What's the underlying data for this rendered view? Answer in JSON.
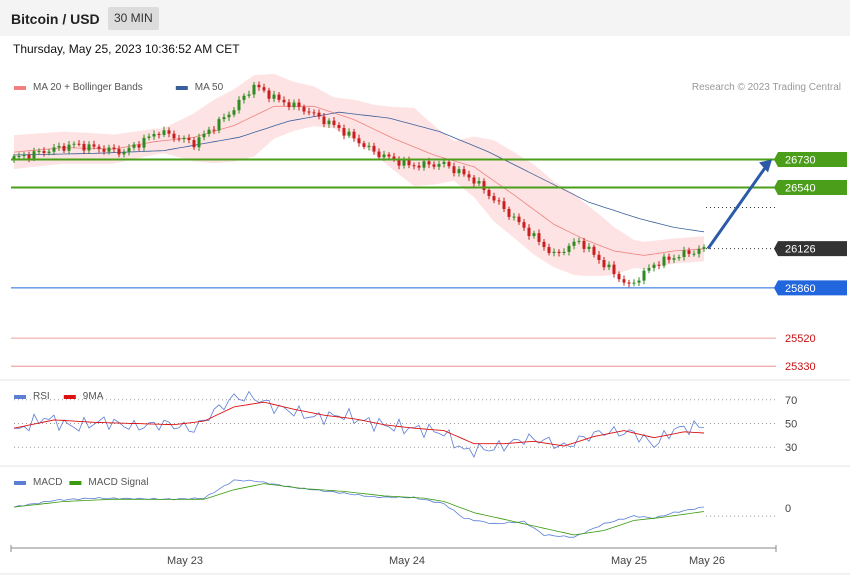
{
  "header": {
    "title": "Bitcoin / USD",
    "timeframe": "30 MIN",
    "datetime": "Thursday, May 25, 2023 10:36:52 AM CET"
  },
  "colors": {
    "bollinger": "#f08080",
    "bollinger_fill": "#fde3e3",
    "ma50": "#3a5f9b",
    "bull": "#2e8b20",
    "bear": "#c81e1e",
    "resistance": "#4a9e1a",
    "support": "#2266dd",
    "secondary_support": "#e84a4a",
    "current": "#333333",
    "rsi": "#5b7fd6",
    "rsi_ma": "#dd1111",
    "macd": "#5b7fd6",
    "macd_signal": "#3a9a10"
  },
  "chart_data": [
    {
      "type": "candlestick",
      "panel": "price",
      "legend": [
        {
          "name": "MA 20 + Bollinger Bands",
          "color": "#f08080"
        },
        {
          "name": "MA 50",
          "color": "#3a5f9b"
        }
      ],
      "copyright": "Research © 2023 Trading Central",
      "ylim": [
        25250,
        27390
      ],
      "x_ticks": [
        "May 23",
        "May 24",
        "May 25",
        "May 26"
      ],
      "levels": [
        {
          "value": 26730,
          "label": "26730",
          "kind": "resistance"
        },
        {
          "value": 26540,
          "label": "26540",
          "kind": "resistance"
        },
        {
          "value": 26126,
          "label": "26126",
          "kind": "current"
        },
        {
          "value": 25860,
          "label": "25860",
          "kind": "support"
        },
        {
          "value": 25520,
          "label": "25520",
          "kind": "secondary_support"
        },
        {
          "value": 25330,
          "label": "25330",
          "kind": "secondary_support"
        }
      ],
      "forecast": {
        "from": 26126,
        "to": 26730
      },
      "path": [
        [
          0,
          26740
        ],
        [
          12,
          26830
        ],
        [
          22,
          26780
        ],
        [
          29,
          26920
        ],
        [
          36,
          26840
        ],
        [
          43,
          27040
        ],
        [
          48,
          27230
        ],
        [
          53,
          27130
        ],
        [
          58,
          27070
        ],
        [
          65,
          26940
        ],
        [
          72,
          26780
        ],
        [
          79,
          26690
        ],
        [
          86,
          26700
        ],
        [
          92,
          26590
        ],
        [
          100,
          26330
        ],
        [
          108,
          26080
        ],
        [
          113,
          26180
        ],
        [
          118,
          26020
        ],
        [
          123,
          25870
        ],
        [
          128,
          26020
        ],
        [
          133,
          26080
        ],
        [
          138,
          26125
        ]
      ],
      "ma20": [
        [
          0,
          26780
        ],
        [
          10,
          26810
        ],
        [
          20,
          26800
        ],
        [
          28,
          26850
        ],
        [
          36,
          26880
        ],
        [
          44,
          26960
        ],
        [
          52,
          27090
        ],
        [
          60,
          27090
        ],
        [
          68,
          27000
        ],
        [
          76,
          26870
        ],
        [
          84,
          26760
        ],
        [
          92,
          26680
        ],
        [
          100,
          26490
        ],
        [
          108,
          26290
        ],
        [
          114,
          26190
        ],
        [
          120,
          26110
        ],
        [
          126,
          26080
        ],
        [
          132,
          26110
        ],
        [
          138,
          26125
        ]
      ],
      "bb_half_width": [
        [
          0,
          70
        ],
        [
          15,
          60
        ],
        [
          30,
          40
        ],
        [
          40,
          170
        ],
        [
          48,
          230
        ],
        [
          56,
          120
        ],
        [
          64,
          60
        ],
        [
          72,
          120
        ],
        [
          80,
          220
        ],
        [
          88,
          90
        ],
        [
          96,
          230
        ],
        [
          104,
          260
        ],
        [
          112,
          230
        ],
        [
          118,
          150
        ],
        [
          124,
          50
        ],
        [
          132,
          40
        ],
        [
          138,
          40
        ]
      ],
      "ma50": [
        [
          0,
          26760
        ],
        [
          15,
          26770
        ],
        [
          30,
          26790
        ],
        [
          45,
          26880
        ],
        [
          55,
          26990
        ],
        [
          65,
          27050
        ],
        [
          75,
          27010
        ],
        [
          85,
          26920
        ],
        [
          95,
          26780
        ],
        [
          105,
          26610
        ],
        [
          115,
          26440
        ],
        [
          125,
          26330
        ],
        [
          132,
          26270
        ],
        [
          138,
          26240
        ]
      ]
    },
    {
      "type": "line",
      "panel": "rsi",
      "legend": [
        {
          "name": "RSI",
          "color": "#5b7fd6"
        },
        {
          "name": "9MA",
          "color": "#dd1111"
        }
      ],
      "ylim": [
        15,
        85
      ],
      "levels": [
        70,
        50,
        30
      ],
      "level_labels": [
        "70",
        "50",
        "30"
      ],
      "rsi": [
        [
          0,
          43
        ],
        [
          6,
          55
        ],
        [
          12,
          47
        ],
        [
          18,
          52
        ],
        [
          24,
          47
        ],
        [
          30,
          50
        ],
        [
          36,
          45
        ],
        [
          40,
          60
        ],
        [
          44,
          72
        ],
        [
          48,
          72
        ],
        [
          52,
          64
        ],
        [
          56,
          60
        ],
        [
          60,
          55
        ],
        [
          66,
          57
        ],
        [
          70,
          52
        ],
        [
          76,
          47
        ],
        [
          82,
          45
        ],
        [
          86,
          42
        ],
        [
          90,
          27
        ],
        [
          96,
          29
        ],
        [
          102,
          37
        ],
        [
          106,
          36
        ],
        [
          110,
          30
        ],
        [
          114,
          38
        ],
        [
          118,
          43
        ],
        [
          124,
          42
        ],
        [
          128,
          32
        ],
        [
          132,
          45
        ],
        [
          138,
          48
        ]
      ],
      "ma9": [
        [
          0,
          46
        ],
        [
          8,
          53
        ],
        [
          16,
          51
        ],
        [
          24,
          50
        ],
        [
          32,
          49
        ],
        [
          38,
          52
        ],
        [
          44,
          64
        ],
        [
          50,
          68
        ],
        [
          56,
          62
        ],
        [
          62,
          57
        ],
        [
          68,
          54
        ],
        [
          74,
          49
        ],
        [
          80,
          46
        ],
        [
          86,
          44
        ],
        [
          92,
          33
        ],
        [
          98,
          33
        ],
        [
          104,
          35
        ],
        [
          110,
          31
        ],
        [
          116,
          39
        ],
        [
          122,
          44
        ],
        [
          128,
          38
        ],
        [
          134,
          43
        ],
        [
          138,
          42
        ]
      ]
    },
    {
      "type": "line",
      "panel": "macd",
      "legend": [
        {
          "name": "MACD",
          "color": "#5b7fd6"
        },
        {
          "name": "MACD Signal",
          "color": "#3a9a10"
        }
      ],
      "ylim": [
        -330,
        360
      ],
      "zero_label": "0",
      "macd": [
        [
          0,
          10
        ],
        [
          8,
          70
        ],
        [
          16,
          90
        ],
        [
          24,
          85
        ],
        [
          32,
          80
        ],
        [
          38,
          90
        ],
        [
          44,
          250
        ],
        [
          48,
          245
        ],
        [
          56,
          185
        ],
        [
          64,
          145
        ],
        [
          72,
          100
        ],
        [
          80,
          95
        ],
        [
          86,
          40
        ],
        [
          90,
          -90
        ],
        [
          96,
          -140
        ],
        [
          102,
          -120
        ],
        [
          106,
          -240
        ],
        [
          112,
          -260
        ],
        [
          118,
          -140
        ],
        [
          124,
          -70
        ],
        [
          128,
          -90
        ],
        [
          132,
          -40
        ],
        [
          138,
          10
        ]
      ],
      "signal": [
        [
          0,
          10
        ],
        [
          10,
          60
        ],
        [
          20,
          80
        ],
        [
          30,
          78
        ],
        [
          38,
          80
        ],
        [
          44,
          165
        ],
        [
          50,
          220
        ],
        [
          58,
          175
        ],
        [
          66,
          150
        ],
        [
          74,
          110
        ],
        [
          82,
          90
        ],
        [
          86,
          60
        ],
        [
          92,
          -40
        ],
        [
          98,
          -100
        ],
        [
          104,
          -160
        ],
        [
          112,
          -240
        ],
        [
          118,
          -200
        ],
        [
          124,
          -110
        ],
        [
          130,
          -80
        ],
        [
          138,
          -30
        ]
      ]
    }
  ]
}
